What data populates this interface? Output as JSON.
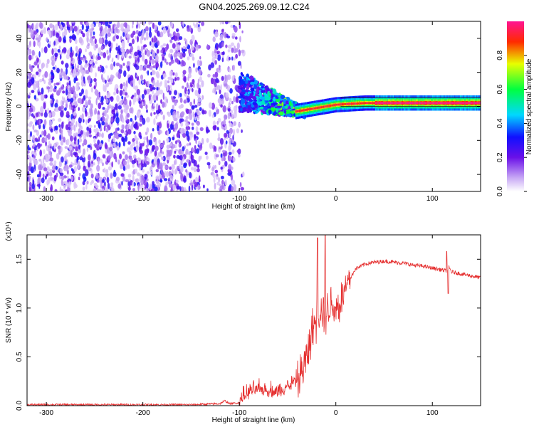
{
  "title": "GN04.2025.269.09.12.C24",
  "chart_data": [
    {
      "type": "heatmap",
      "xlabel": "Height of straight line (km)",
      "ylabel": "Frequency (Hz)",
      "xlim": [
        -320,
        150
      ],
      "ylim": [
        -50,
        50
      ],
      "xticks": [
        -300,
        -200,
        -100,
        0,
        100
      ],
      "yticks": [
        -40,
        -20,
        0,
        20,
        40
      ],
      "colorbar": {
        "label": "Normalized spectral amplitude",
        "range": [
          0,
          1
        ],
        "ticks": [
          "0.0",
          "0.2",
          "0.4",
          "0.6",
          "0.8"
        ],
        "colormap": [
          "#ffffff",
          "#8a2be2",
          "#0000ff",
          "#00ffff",
          "#00ff00",
          "#ffff00",
          "#ff0000",
          "#ff1493"
        ]
      },
      "regions": [
        {
          "name": "noise",
          "x_range": [
            -320,
            -100
          ],
          "y_range": [
            -50,
            50
          ],
          "amplitude": 0.15
        },
        {
          "name": "transition",
          "x_range": [
            -100,
            -40
          ],
          "freq_center": [
            8,
            -4
          ],
          "amplitude": 0.45
        },
        {
          "name": "signal",
          "x_range": [
            -40,
            150
          ],
          "freq_center": [
            0,
            2
          ],
          "amplitude": 0.9
        }
      ]
    },
    {
      "type": "line",
      "xlabel": "Height of straight line (km)",
      "ylabel": "SNR (10 * v/v)",
      "y_multiplier": "(x10⁴)",
      "xlim": [
        -320,
        150
      ],
      "ylim": [
        0,
        1.75
      ],
      "xticks": [
        -300,
        -200,
        -100,
        0,
        100
      ],
      "yticks": [
        0.0,
        0.5,
        1.0,
        1.5
      ],
      "series": [
        {
          "color": "#e53030",
          "x": [
            -320,
            -250,
            -150,
            -120,
            -115,
            -110,
            -100,
            -90,
            -80,
            -70,
            -60,
            -50,
            -40,
            -35,
            -30,
            -25,
            -20,
            -15,
            -10,
            -5,
            0,
            5,
            10,
            20,
            30,
            40,
            50,
            60,
            70,
            80,
            90,
            100,
            110,
            115,
            117,
            120,
            130,
            140,
            150
          ],
          "y": [
            0.01,
            0.01,
            0.01,
            0.02,
            0.05,
            0.02,
            0.03,
            0.12,
            0.15,
            0.14,
            0.12,
            0.18,
            0.25,
            0.35,
            0.5,
            0.75,
            0.9,
            1.0,
            0.95,
            1.05,
            1.0,
            1.05,
            1.2,
            1.4,
            1.45,
            1.47,
            1.48,
            1.47,
            1.46,
            1.44,
            1.43,
            1.41,
            1.39,
            1.38,
            1.42,
            1.37,
            1.35,
            1.33,
            1.31
          ]
        }
      ]
    }
  ]
}
